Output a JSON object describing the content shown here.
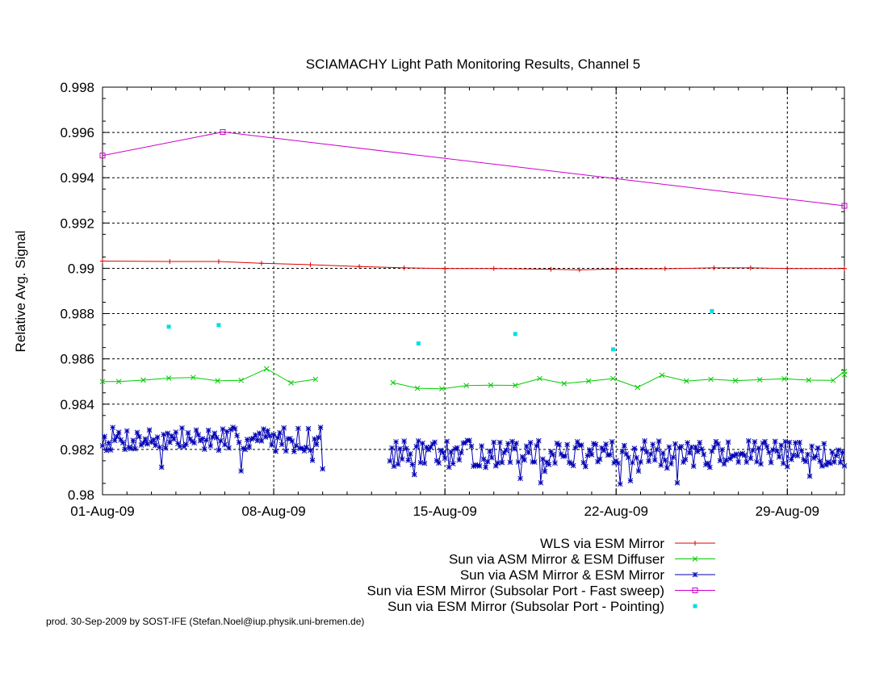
{
  "chart_data": {
    "type": "line",
    "title": "SCIAMACHY Light Path Monitoring Results, Channel 5",
    "xlabel": "",
    "ylabel": "Relative Avg. Signal",
    "x_axis": {
      "type": "date",
      "range": [
        "2009-08-01",
        "2009-08-31T08:00"
      ],
      "ticks": [
        {
          "date": "2009-08-01",
          "label": "01-Aug-09"
        },
        {
          "date": "2009-08-08",
          "label": "08-Aug-09"
        },
        {
          "date": "2009-08-15",
          "label": "15-Aug-09"
        },
        {
          "date": "2009-08-22",
          "label": "22-Aug-09"
        },
        {
          "date": "2009-08-29",
          "label": "29-Aug-09"
        }
      ]
    },
    "ylim": [
      0.98,
      0.998
    ],
    "y_ticks": [
      {
        "value": 0.98,
        "label": "0.98"
      },
      {
        "value": 0.982,
        "label": "0.982"
      },
      {
        "value": 0.984,
        "label": "0.984"
      },
      {
        "value": 0.986,
        "label": "0.986"
      },
      {
        "value": 0.988,
        "label": "0.988"
      },
      {
        "value": 0.99,
        "label": "0.99"
      },
      {
        "value": 0.992,
        "label": "0.992"
      },
      {
        "value": 0.994,
        "label": "0.994"
      },
      {
        "value": 0.996,
        "label": "0.996"
      },
      {
        "value": 0.998,
        "label": "0.998"
      }
    ],
    "grid": "dashed-major",
    "legend_position": "below-right",
    "series": [
      {
        "name": "WLS via ESM Mirror",
        "color": "#e00000",
        "marker": "plus",
        "style": "line",
        "points": [
          {
            "x": "2009-08-01T00:00",
            "y": 0.99032
          },
          {
            "x": "2009-08-03T18:00",
            "y": 0.9903
          },
          {
            "x": "2009-08-05T18:00",
            "y": 0.9903
          },
          {
            "x": "2009-08-07T12:00",
            "y": 0.99022
          },
          {
            "x": "2009-08-09T12:00",
            "y": 0.99016
          },
          {
            "x": "2009-08-11T12:00",
            "y": 0.99008
          },
          {
            "x": "2009-08-13T08:00",
            "y": 0.99002
          },
          {
            "x": "2009-08-15T00:00",
            "y": 0.98999
          },
          {
            "x": "2009-08-17T00:00",
            "y": 0.98999
          },
          {
            "x": "2009-08-19T08:00",
            "y": 0.98996
          },
          {
            "x": "2009-08-20T12:00",
            "y": 0.98993
          },
          {
            "x": "2009-08-22T00:00",
            "y": 0.98997
          },
          {
            "x": "2009-08-24T00:00",
            "y": 0.98998
          },
          {
            "x": "2009-08-26T00:00",
            "y": 0.99002
          },
          {
            "x": "2009-08-27T12:00",
            "y": 0.99002
          },
          {
            "x": "2009-08-29T00:00",
            "y": 0.98999
          },
          {
            "x": "2009-08-31T08:00",
            "y": 0.98999
          }
        ]
      },
      {
        "name": "Sun via ASM Mirror & ESM Diffuser",
        "color": "#00cc00",
        "marker": "cross",
        "style": "line",
        "points": [
          {
            "x": "2009-08-01T00:00",
            "y": 0.985
          },
          {
            "x": "2009-08-01T16:00",
            "y": 0.985
          },
          {
            "x": "2009-08-02T16:00",
            "y": 0.98506
          },
          {
            "x": "2009-08-03T17:00",
            "y": 0.98515
          },
          {
            "x": "2009-08-04T17:00",
            "y": 0.98518
          },
          {
            "x": "2009-08-05T17:00",
            "y": 0.98503
          },
          {
            "x": "2009-08-06T16:00",
            "y": 0.98505
          },
          {
            "x": "2009-08-07T17:00",
            "y": 0.98556
          },
          {
            "x": "2009-08-08T17:00",
            "y": 0.98494
          },
          {
            "x": "2009-08-09T17:00",
            "y": 0.9851
          },
          {
            "x": null,
            "y": null
          },
          {
            "x": "2009-08-12T21:00",
            "y": 0.98495
          },
          {
            "x": "2009-08-13T21:00",
            "y": 0.9847
          },
          {
            "x": "2009-08-14T21:00",
            "y": 0.98468
          },
          {
            "x": "2009-08-15T21:00",
            "y": 0.98482
          },
          {
            "x": "2009-08-16T21:00",
            "y": 0.98484
          },
          {
            "x": "2009-08-17T21:00",
            "y": 0.98483
          },
          {
            "x": "2009-08-18T21:00",
            "y": 0.98513
          },
          {
            "x": "2009-08-19T21:00",
            "y": 0.98491
          },
          {
            "x": "2009-08-20T21:00",
            "y": 0.98502
          },
          {
            "x": "2009-08-21T21:00",
            "y": 0.98513
          },
          {
            "x": "2009-08-22T21:00",
            "y": 0.98474
          },
          {
            "x": "2009-08-23T21:00",
            "y": 0.98528
          },
          {
            "x": "2009-08-24T21:00",
            "y": 0.98502
          },
          {
            "x": "2009-08-25T21:00",
            "y": 0.9851
          },
          {
            "x": "2009-08-26T21:00",
            "y": 0.98504
          },
          {
            "x": "2009-08-27T21:00",
            "y": 0.98508
          },
          {
            "x": "2009-08-28T21:00",
            "y": 0.98512
          },
          {
            "x": "2009-08-29T21:00",
            "y": 0.98506
          },
          {
            "x": "2009-08-30T21:00",
            "y": 0.98505
          },
          {
            "x": "2009-08-31T21:00",
            "y": 0.98545
          },
          {
            "x": "2009-08-31T08:00",
            "y": 0.9853
          }
        ]
      },
      {
        "name": "Sun via ASM Mirror & ESM Mirror",
        "color": "#0000b4",
        "marker": "star",
        "style": "line",
        "generated": true,
        "segments": [
          {
            "from": "2009-08-01T00:00",
            "to": "2009-08-10T00:00",
            "step_hours": 2,
            "center": 0.98245,
            "amplitude": 0.00055,
            "seed": 7
          },
          {
            "from": "2009-08-12T18:00",
            "to": "2009-08-31T08:00",
            "step_hours": 2,
            "center": 0.9818,
            "amplitude": 0.0006,
            "seed": 13
          }
        ]
      },
      {
        "name": "Sun via ESM Mirror (Subsolar Port - Fast sweep)",
        "color": "#cc00cc",
        "marker": "square",
        "style": "line",
        "points": [
          {
            "x": "2009-08-01T00:00",
            "y": 0.99498
          },
          {
            "x": "2009-08-05T22:00",
            "y": 0.99602
          },
          {
            "x": "2009-08-31T08:00",
            "y": 0.99276
          }
        ]
      },
      {
        "name": "Sun via ESM Mirror (Subsolar Port - Pointing)",
        "color": "#00e0e0",
        "marker": "filled-square",
        "style": "points",
        "points": [
          {
            "x": "2009-08-03T17:00",
            "y": 0.98742
          },
          {
            "x": "2009-08-05T18:00",
            "y": 0.98749
          },
          {
            "x": "2009-08-13T22:00",
            "y": 0.98668
          },
          {
            "x": "2009-08-17T21:00",
            "y": 0.9871
          },
          {
            "x": "2009-08-21T21:00",
            "y": 0.98642
          },
          {
            "x": "2009-08-25T22:00",
            "y": 0.98811
          }
        ]
      }
    ]
  },
  "credit": "prod. 30-Sep-2009 by SOST-IFE (Stefan.Noel@iup.physik.uni-bremen.de)"
}
